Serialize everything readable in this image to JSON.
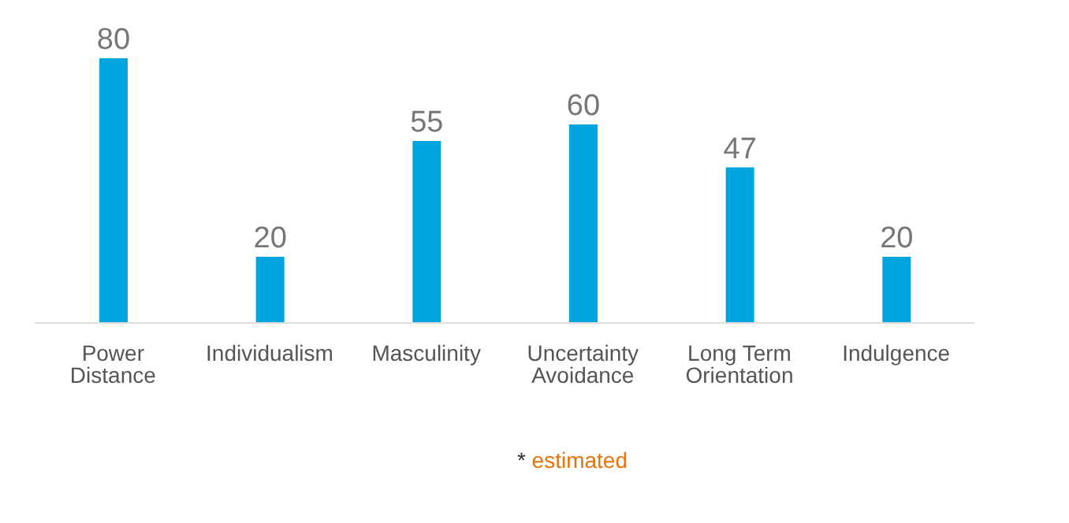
{
  "chart_data": {
    "type": "bar",
    "categories": [
      "Power Distance",
      "Individualism",
      "Masculinity",
      "Uncertainty Avoidance",
      "Long Term Orientation",
      "Indulgence"
    ],
    "values": [
      80,
      20,
      55,
      60,
      47,
      20
    ],
    "color": "#00a5df",
    "data_labels": true,
    "annotations": [
      "* estimated"
    ]
  }
}
